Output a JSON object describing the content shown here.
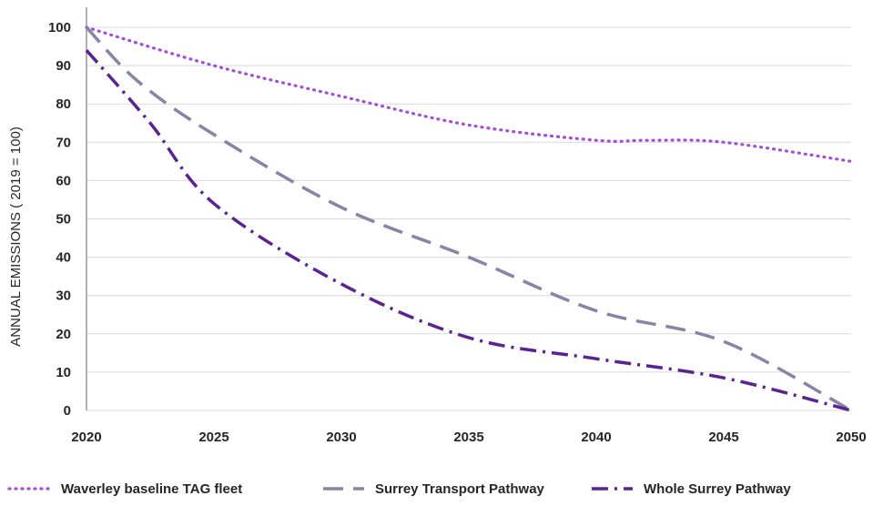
{
  "chart_data": {
    "type": "line",
    "title": "",
    "xlabel": "",
    "ylabel": "ANNUAL EMISSIONS ( 2019 = 100)",
    "xlim": [
      2020,
      2050
    ],
    "ylim": [
      0,
      100
    ],
    "x_ticks": [
      "2020",
      "2025",
      "2030",
      "2035",
      "2040",
      "2045",
      "2050"
    ],
    "y_ticks": [
      "0",
      "10",
      "20",
      "30",
      "40",
      "50",
      "60",
      "70",
      "80",
      "90",
      "100"
    ],
    "grid": "horizontal",
    "legend_position": "bottom",
    "series": [
      {
        "name": "Waverley baseline TAG fleet",
        "color": "#a64bd8",
        "style": "dotted",
        "x": [
          2020,
          2025,
          2030,
          2035,
          2040,
          2042,
          2045,
          2050
        ],
        "y": [
          100,
          90,
          82,
          74.5,
          70.5,
          70.5,
          70,
          65
        ]
      },
      {
        "name": "Surrey Transport Pathway",
        "color": "#8585a8",
        "style": "dashed",
        "x": [
          2020,
          2022,
          2025,
          2030,
          2035,
          2040,
          2045,
          2050
        ],
        "y": [
          100,
          86,
          72,
          53,
          40,
          26,
          18,
          0
        ]
      },
      {
        "name": "Whole Surrey Pathway",
        "color": "#5a2391",
        "style": "dashdot",
        "x": [
          2020,
          2022.5,
          2025,
          2030,
          2035,
          2040,
          2045,
          2050
        ],
        "y": [
          94,
          75,
          54,
          33,
          19,
          13.5,
          8.5,
          0
        ]
      }
    ]
  }
}
